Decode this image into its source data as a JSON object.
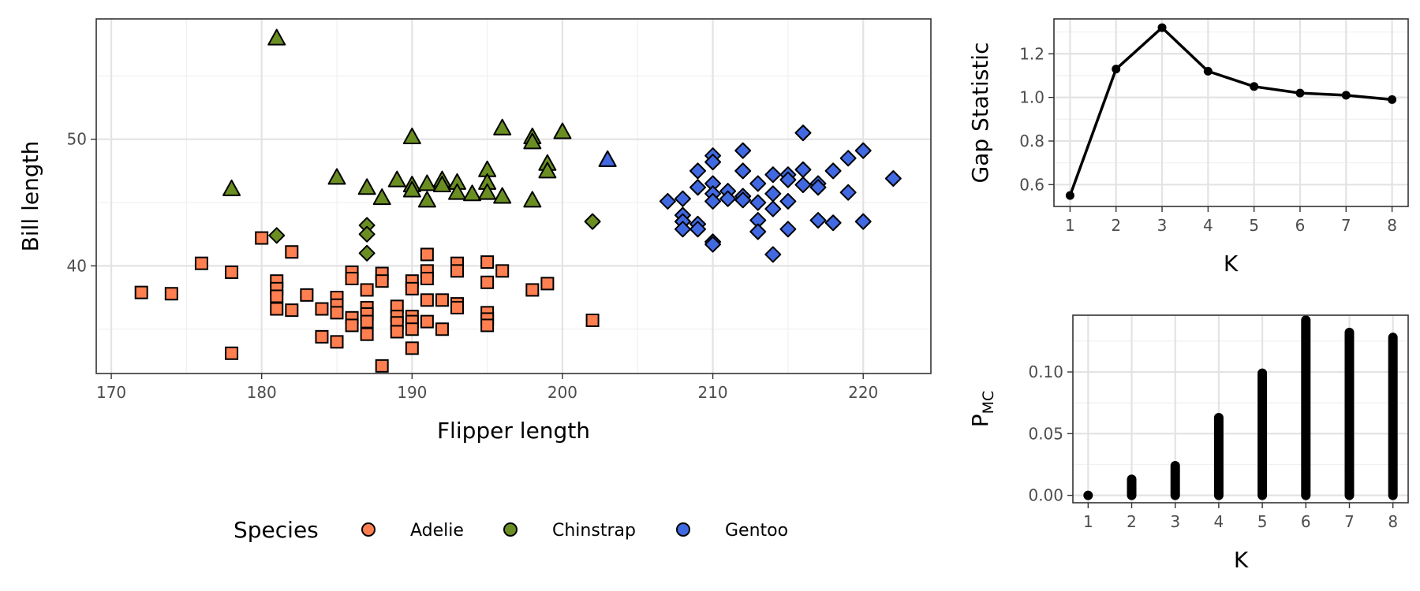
{
  "chart_data": [
    {
      "type": "scatter",
      "xlabel": "Flipper length",
      "ylabel": "Bill length",
      "xlim": [
        169,
        224.5
      ],
      "ylim": [
        31.5,
        59.5
      ],
      "xticks": [
        170,
        180,
        190,
        200,
        210,
        220
      ],
      "yticks": [
        40,
        50
      ],
      "grid": true,
      "legend": {
        "title": "Species",
        "position": "bottom",
        "entries": [
          "Adelie",
          "Chinstrap",
          "Gentoo"
        ]
      },
      "series": [
        {
          "name": "Adelie",
          "color": "#FF7F50",
          "marker": "square",
          "points": [
            [
              172,
              37.9
            ],
            [
              174,
              37.8
            ],
            [
              176,
              40.2
            ],
            [
              178,
              39.5
            ],
            [
              178,
              33.1
            ],
            [
              180,
              42.2
            ],
            [
              181,
              38.8
            ],
            [
              181,
              38.2
            ],
            [
              181,
              37.6
            ],
            [
              181,
              36.6
            ],
            [
              182,
              41.1
            ],
            [
              182,
              36.5
            ],
            [
              183,
              37.7
            ],
            [
              184,
              36.6
            ],
            [
              184,
              34.4
            ],
            [
              185,
              37.5
            ],
            [
              185,
              36.9
            ],
            [
              185,
              36.3
            ],
            [
              185,
              34.0
            ],
            [
              186,
              39.5
            ],
            [
              186,
              39.0
            ],
            [
              186,
              35.9
            ],
            [
              186,
              35.3
            ],
            [
              187,
              38.1
            ],
            [
              187,
              36.7
            ],
            [
              187,
              36.2
            ],
            [
              187,
              35.6
            ],
            [
              187,
              34.6
            ],
            [
              188,
              39.4
            ],
            [
              188,
              38.8
            ],
            [
              188,
              32.1
            ],
            [
              189,
              36.8
            ],
            [
              189,
              36.0
            ],
            [
              189,
              35.5
            ],
            [
              189,
              34.8
            ],
            [
              190,
              38.8
            ],
            [
              190,
              38.2
            ],
            [
              190,
              36.0
            ],
            [
              190,
              35.6
            ],
            [
              190,
              35.0
            ],
            [
              190,
              33.5
            ],
            [
              191,
              40.9
            ],
            [
              191,
              39.6
            ],
            [
              191,
              39.0
            ],
            [
              191,
              37.3
            ],
            [
              191,
              35.6
            ],
            [
              192,
              37.3
            ],
            [
              192,
              35.0
            ],
            [
              193,
              40.2
            ],
            [
              193,
              39.6
            ],
            [
              193,
              37.0
            ],
            [
              193,
              36.7
            ],
            [
              195,
              40.3
            ],
            [
              195,
              38.7
            ],
            [
              195,
              36.3
            ],
            [
              195,
              35.8
            ],
            [
              195,
              35.3
            ],
            [
              196,
              39.6
            ],
            [
              198,
              38.1
            ],
            [
              199,
              38.6
            ],
            [
              202,
              35.7
            ]
          ]
        },
        {
          "name": "Chinstrap",
          "color": "#6B8E23",
          "marker": "triangle",
          "points": [
            [
              178,
              46.1
            ],
            [
              181,
              58.0
            ],
            [
              185,
              47.0
            ],
            [
              187,
              46.2
            ],
            [
              188,
              45.4
            ],
            [
              189,
              46.8
            ],
            [
              190,
              50.2
            ],
            [
              190,
              46.4
            ],
            [
              190,
              46.0
            ],
            [
              191,
              46.5
            ],
            [
              191,
              45.2
            ],
            [
              192,
              46.8
            ],
            [
              192,
              46.4
            ],
            [
              193,
              46.6
            ],
            [
              193,
              45.8
            ],
            [
              194,
              45.7
            ],
            [
              195,
              47.6
            ],
            [
              195,
              46.6
            ],
            [
              195,
              45.8
            ],
            [
              196,
              50.9
            ],
            [
              196,
              45.5
            ],
            [
              198,
              50.2
            ],
            [
              198,
              49.8
            ],
            [
              198,
              45.2
            ],
            [
              199,
              48.1
            ],
            [
              199,
              47.5
            ],
            [
              200,
              50.6
            ],
            [
              203,
              48.4
            ]
          ]
        },
        {
          "name": "Chinstrap",
          "color": "#6B8E23",
          "marker": "diamond",
          "points": [
            [
              181,
              42.4
            ],
            [
              187,
              43.2
            ],
            [
              187,
              42.5
            ],
            [
              187,
              41.0
            ],
            [
              202,
              43.5
            ]
          ]
        },
        {
          "name": "Chinstrap",
          "color": "#4169E1",
          "marker": "triangle",
          "points": [
            [
              203,
              48.4
            ]
          ]
        },
        {
          "name": "Gentoo",
          "color": "#4169E1",
          "marker": "diamond",
          "points": [
            [
              207,
              45.1
            ],
            [
              208,
              45.3
            ],
            [
              208,
              44.0
            ],
            [
              208,
              43.5
            ],
            [
              208,
              42.9
            ],
            [
              209,
              47.5
            ],
            [
              209,
              46.2
            ],
            [
              209,
              43.3
            ],
            [
              209,
              42.9
            ],
            [
              210,
              48.7
            ],
            [
              210,
              48.2
            ],
            [
              210,
              46.5
            ],
            [
              210,
              45.7
            ],
            [
              210,
              45.1
            ],
            [
              210,
              41.9
            ],
            [
              210,
              41.7
            ],
            [
              211,
              45.9
            ],
            [
              211,
              45.3
            ],
            [
              212,
              49.1
            ],
            [
              212,
              47.5
            ],
            [
              212,
              45.5
            ],
            [
              212,
              45.2
            ],
            [
              213,
              46.5
            ],
            [
              213,
              45.0
            ],
            [
              213,
              43.6
            ],
            [
              213,
              42.7
            ],
            [
              214,
              47.2
            ],
            [
              214,
              45.7
            ],
            [
              214,
              44.5
            ],
            [
              214,
              40.9
            ],
            [
              215,
              47.2
            ],
            [
              215,
              46.8
            ],
            [
              215,
              45.1
            ],
            [
              215,
              42.9
            ],
            [
              216,
              50.5
            ],
            [
              216,
              47.6
            ],
            [
              216,
              46.4
            ],
            [
              217,
              46.5
            ],
            [
              217,
              46.2
            ],
            [
              217,
              43.6
            ],
            [
              218,
              47.5
            ],
            [
              218,
              43.4
            ],
            [
              219,
              48.5
            ],
            [
              219,
              45.8
            ],
            [
              220,
              49.1
            ],
            [
              220,
              43.5
            ],
            [
              222,
              46.9
            ]
          ]
        }
      ]
    },
    {
      "type": "line",
      "xlabel": "K",
      "ylabel": "Gap Statistic",
      "xlim": [
        0.65,
        8.35
      ],
      "ylim": [
        0.5,
        1.36
      ],
      "xticks": [
        1,
        2,
        3,
        4,
        5,
        6,
        7,
        8
      ],
      "yticks": [
        0.6,
        0.8,
        1.0,
        1.2
      ],
      "ytick_labels": [
        "0.6",
        "0.8",
        "1.0",
        "1.2"
      ],
      "grid": true,
      "x": [
        1,
        2,
        3,
        4,
        5,
        6,
        7,
        8
      ],
      "values": [
        0.55,
        1.13,
        1.32,
        1.12,
        1.05,
        1.02,
        1.01,
        0.99
      ]
    },
    {
      "type": "scatter",
      "xlabel": "K",
      "ylabel_main": "P",
      "ylabel_sub": "MC",
      "xlim": [
        0.65,
        8.35
      ],
      "ylim": [
        -0.006,
        0.146
      ],
      "xticks": [
        1,
        2,
        3,
        4,
        5,
        6,
        7,
        8
      ],
      "yticks": [
        0.0,
        0.05,
        0.1
      ],
      "ytick_labels": [
        "0.00",
        "0.05",
        "0.10"
      ],
      "grid": true,
      "x": [
        1,
        2,
        3,
        4,
        5,
        6,
        7,
        8
      ],
      "ranges": [
        [
          0.0,
          0.0
        ],
        [
          0.0,
          0.013
        ],
        [
          0.0,
          0.024
        ],
        [
          0.0,
          0.063
        ],
        [
          0.0,
          0.099
        ],
        [
          0.0,
          0.142
        ],
        [
          0.0,
          0.132
        ],
        [
          0.0,
          0.128
        ]
      ]
    }
  ]
}
